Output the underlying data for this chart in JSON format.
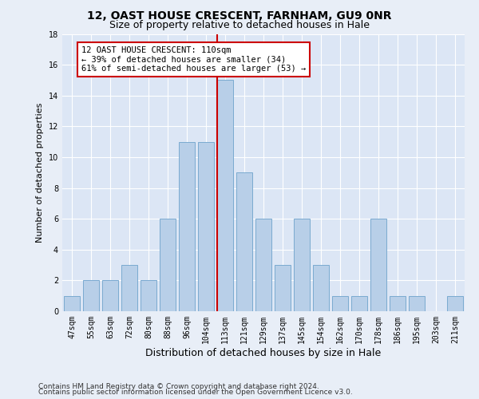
{
  "title": "12, OAST HOUSE CRESCENT, FARNHAM, GU9 0NR",
  "subtitle": "Size of property relative to detached houses in Hale",
  "xlabel": "Distribution of detached houses by size in Hale",
  "ylabel": "Number of detached properties",
  "categories": [
    "47sqm",
    "55sqm",
    "63sqm",
    "72sqm",
    "80sqm",
    "88sqm",
    "96sqm",
    "104sqm",
    "113sqm",
    "121sqm",
    "129sqm",
    "137sqm",
    "145sqm",
    "154sqm",
    "162sqm",
    "170sqm",
    "178sqm",
    "186sqm",
    "195sqm",
    "203sqm",
    "211sqm"
  ],
  "values": [
    1,
    2,
    2,
    3,
    2,
    6,
    11,
    11,
    15,
    9,
    6,
    3,
    6,
    3,
    1,
    1,
    6,
    1,
    1,
    0,
    1
  ],
  "bar_color": "#b8cfe8",
  "bar_edge_color": "#7aaad0",
  "vline_color": "#cc0000",
  "annotation_text": "12 OAST HOUSE CRESCENT: 110sqm\n← 39% of detached houses are smaller (34)\n61% of semi-detached houses are larger (53) →",
  "annotation_box_color": "#ffffff",
  "annotation_box_edge_color": "#cc0000",
  "ylim": [
    0,
    18
  ],
  "yticks": [
    0,
    2,
    4,
    6,
    8,
    10,
    12,
    14,
    16,
    18
  ],
  "background_color": "#dce6f5",
  "fig_background_color": "#e8eef7",
  "grid_color": "#ffffff",
  "footer1": "Contains HM Land Registry data © Crown copyright and database right 2024.",
  "footer2": "Contains public sector information licensed under the Open Government Licence v3.0.",
  "title_fontsize": 10,
  "subtitle_fontsize": 9,
  "xlabel_fontsize": 9,
  "ylabel_fontsize": 8,
  "tick_fontsize": 7,
  "annotation_fontsize": 7.5,
  "footer_fontsize": 6.5
}
